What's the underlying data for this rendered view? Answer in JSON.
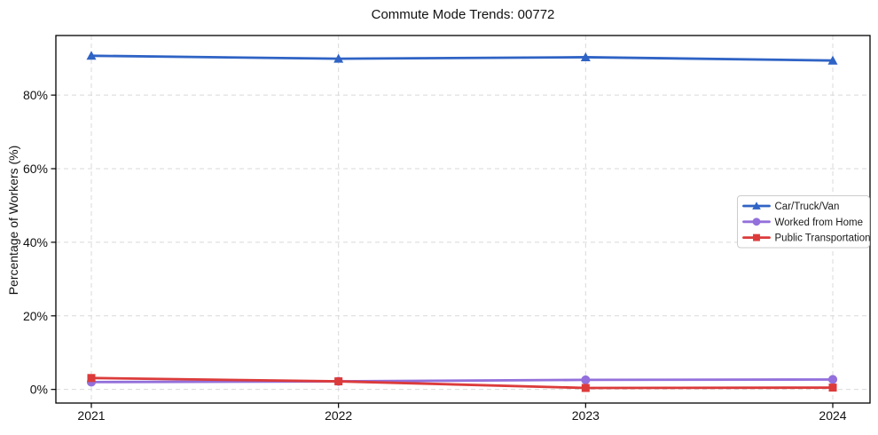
{
  "page": {
    "background_color": "#ffffff",
    "text_color": "#111111"
  },
  "chart_data": {
    "type": "line",
    "title": "Commute Mode Trends: 00772",
    "xlabel": "",
    "ylabel": "Percentage of Workers (%)",
    "x": [
      2021,
      2022,
      2023,
      2024
    ],
    "x_tick_labels": [
      "2021",
      "2022",
      "2023",
      "2024"
    ],
    "y_ticks": [
      0,
      20,
      40,
      60,
      80
    ],
    "y_tick_labels": [
      "0%",
      "20%",
      "40%",
      "60%",
      "80%"
    ],
    "ylim": [
      -3.7,
      96.2
    ],
    "grid": "dashed, both axes",
    "legend_position": "center-right",
    "legend_border_color": "#cccccc",
    "grid_color": "#d9d9d9",
    "spine_color": "#000000",
    "series": [
      {
        "name": "Car/Truck/Van",
        "color": "#2f63c5",
        "marker": "triangle",
        "values": [
          90.7,
          89.9,
          90.3,
          89.4
        ]
      },
      {
        "name": "Worked from Home",
        "color": "#9370db",
        "marker": "circle",
        "values": [
          2.0,
          2.2,
          2.6,
          2.7
        ]
      },
      {
        "name": "Public Transportation",
        "color": "#dc3b3b",
        "marker": "square",
        "values": [
          3.1,
          2.2,
          0.4,
          0.5
        ]
      }
    ]
  }
}
